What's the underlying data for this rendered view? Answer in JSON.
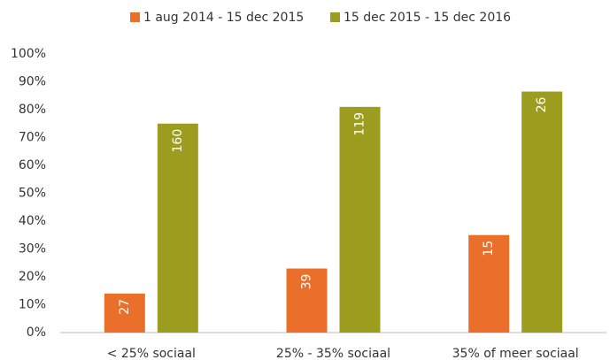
{
  "chart_data": {
    "type": "bar",
    "categories": [
      "< 25% sociaal",
      "25% - 35% sociaal",
      "35% of meer sociaal"
    ],
    "series": [
      {
        "name": "1 aug 2014 - 15 dec 2015",
        "color": "#ea6f2b",
        "values": [
          14,
          23,
          35
        ],
        "data_labels": [
          27,
          39,
          15
        ]
      },
      {
        "name": "15 dec 2015 - 15 dec 2016",
        "color": "#9c9d1e",
        "values": [
          75,
          81,
          86.5
        ],
        "data_labels": [
          160,
          119,
          26
        ]
      }
    ],
    "ylim": [
      0,
      100
    ],
    "yticks": [
      {
        "value": 0,
        "label": "0%"
      },
      {
        "value": 10,
        "label": "10%"
      },
      {
        "value": 20,
        "label": "20%"
      },
      {
        "value": 30,
        "label": "30%"
      },
      {
        "value": 40,
        "label": "40%"
      },
      {
        "value": 50,
        "label": "50%"
      },
      {
        "value": 60,
        "label": "60%"
      },
      {
        "value": 70,
        "label": "70%"
      },
      {
        "value": 80,
        "label": "80%"
      },
      {
        "value": 90,
        "label": "90%"
      },
      {
        "value": 100,
        "label": "100%"
      }
    ],
    "grid": false,
    "legend": "top"
  }
}
